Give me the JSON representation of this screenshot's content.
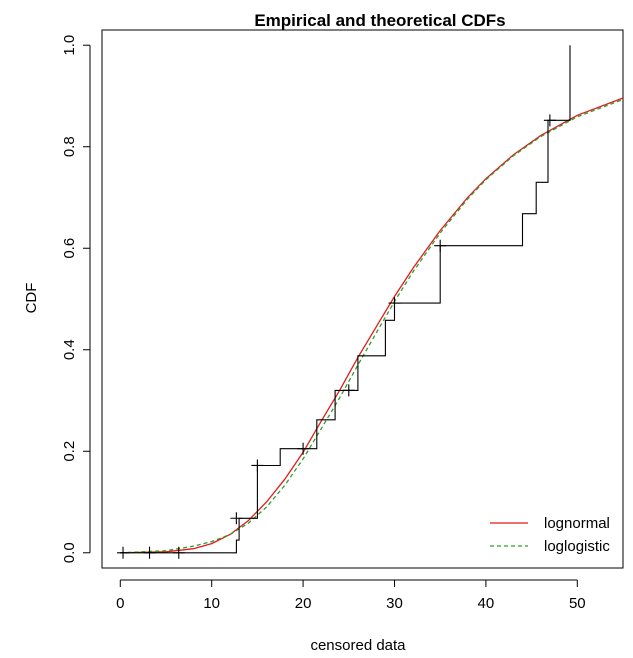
{
  "chart_data": {
    "type": "line",
    "title": "Empirical and theoretical CDFs",
    "xlabel": "censored data",
    "ylabel": "CDF",
    "xlim": [
      -2,
      55
    ],
    "ylim": [
      -0.03,
      1.03
    ],
    "xticks": [
      0,
      10,
      20,
      30,
      40,
      50
    ],
    "yticks": [
      0.0,
      0.2,
      0.4,
      0.6,
      0.8,
      1.0
    ],
    "xtick_labels": [
      "0",
      "10",
      "20",
      "30",
      "40",
      "50"
    ],
    "ytick_labels": [
      "0.0",
      "0.2",
      "0.4",
      "0.6",
      "0.8",
      "1.0"
    ],
    "grid": false,
    "legend_position": "bottom-right",
    "empirical_step": {
      "x": [
        0,
        12.7,
        12.7,
        13.0,
        13.0,
        15.0,
        15.0,
        17.5,
        17.5,
        21.5,
        21.5,
        23.5,
        23.5,
        26.0,
        26.0,
        29.0,
        29.0,
        30.0,
        30.0,
        35.0,
        35.0,
        44.0,
        44.0,
        45.5,
        45.5,
        46.8,
        46.8,
        49.2,
        49.2
      ],
      "y": [
        0,
        0,
        0.025,
        0.025,
        0.068,
        0.068,
        0.172,
        0.172,
        0.205,
        0.205,
        0.262,
        0.262,
        0.32,
        0.32,
        0.388,
        0.388,
        0.458,
        0.458,
        0.492,
        0.492,
        0.605,
        0.605,
        0.668,
        0.668,
        0.73,
        0.73,
        0.852,
        0.852,
        1.0
      ]
    },
    "censored_marks": {
      "x": [
        0.3,
        3.2,
        6.4,
        12.7,
        15.0,
        20.0,
        25.0,
        30.0,
        35.0,
        47.0
      ],
      "y": [
        0,
        0,
        0,
        0.068,
        0.172,
        0.205,
        0.32,
        0.492,
        0.605,
        0.852
      ]
    },
    "series": [
      {
        "name": "lognormal",
        "color": "#e41a1c",
        "style": "solid",
        "x": [
          0,
          5,
          8,
          10,
          12,
          14,
          16,
          18,
          20,
          22,
          24,
          26,
          28,
          30,
          32,
          35,
          38,
          40,
          43,
          46,
          50,
          55
        ],
        "values": [
          0,
          0.002,
          0.008,
          0.018,
          0.036,
          0.063,
          0.1,
          0.145,
          0.198,
          0.26,
          0.32,
          0.385,
          0.445,
          0.505,
          0.56,
          0.635,
          0.7,
          0.737,
          0.784,
          0.822,
          0.862,
          0.896
        ]
      },
      {
        "name": "loglogistic",
        "color": "#2ca02c",
        "style": "dashed",
        "x": [
          0,
          5,
          8,
          10,
          12,
          14,
          16,
          18,
          20,
          22,
          24,
          26,
          28,
          30,
          32,
          35,
          38,
          40,
          43,
          46,
          50,
          55
        ],
        "values": [
          0,
          0.004,
          0.013,
          0.022,
          0.036,
          0.058,
          0.09,
          0.133,
          0.185,
          0.245,
          0.305,
          0.37,
          0.433,
          0.495,
          0.553,
          0.63,
          0.697,
          0.735,
          0.782,
          0.82,
          0.859,
          0.893
        ]
      }
    ]
  }
}
